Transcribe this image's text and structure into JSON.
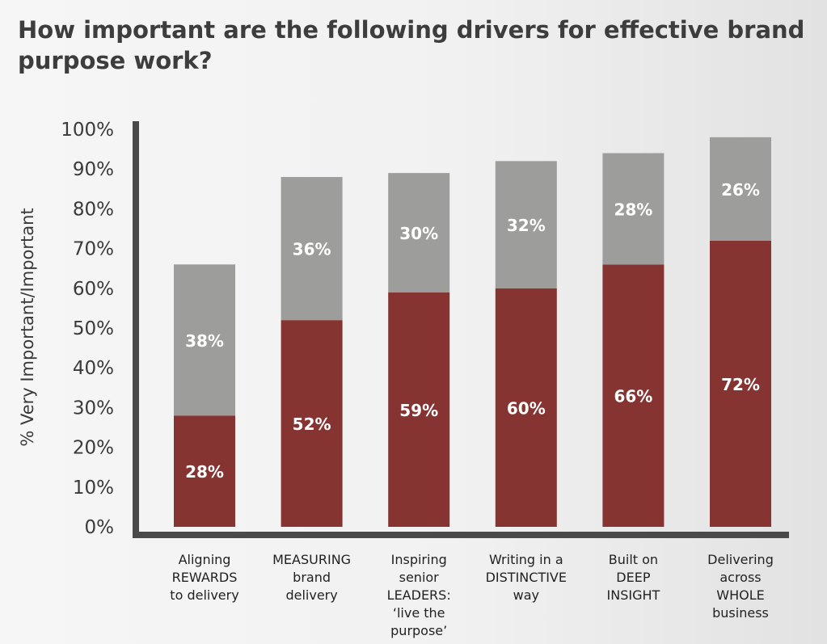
{
  "title": "How important are the following drivers for effective brand purpose work?",
  "chart_data": {
    "type": "bar",
    "stacked": true,
    "title": "How important are the following drivers for effective brand purpose work?",
    "ylabel": "% Very Important/Important",
    "xlabel": "",
    "ylim": [
      0,
      100
    ],
    "yticks": [
      "0%",
      "10%",
      "20%",
      "30%",
      "40%",
      "50%",
      "60%",
      "70%",
      "80%",
      "90%",
      "100%"
    ],
    "categories": [
      [
        "Aligning",
        "REWARDS",
        "to delivery"
      ],
      [
        "MEASURING",
        "brand",
        "delivery"
      ],
      [
        "Inspiring",
        "senior",
        "LEADERS:",
        "‘live the",
        "purpose’"
      ],
      [
        "Writing in a",
        "DISTINCTIVE",
        "way"
      ],
      [
        "Built on",
        "DEEP",
        "INSIGHT"
      ],
      [
        "Delivering",
        "across",
        "WHOLE",
        "business"
      ]
    ],
    "series": [
      {
        "values": [
          28,
          52,
          59,
          60,
          66,
          72
        ],
        "labels": [
          "28%",
          "52%",
          "59%",
          "60%",
          "66%",
          "72%"
        ],
        "color": "#853431"
      },
      {
        "values": [
          38,
          36,
          30,
          32,
          28,
          26
        ],
        "labels": [
          "38%",
          "36%",
          "30%",
          "32%",
          "28%",
          "26%"
        ],
        "color": "#9d9e9b"
      }
    ],
    "axis_color": "#4a4a4a",
    "grid": false,
    "legend": "none"
  }
}
